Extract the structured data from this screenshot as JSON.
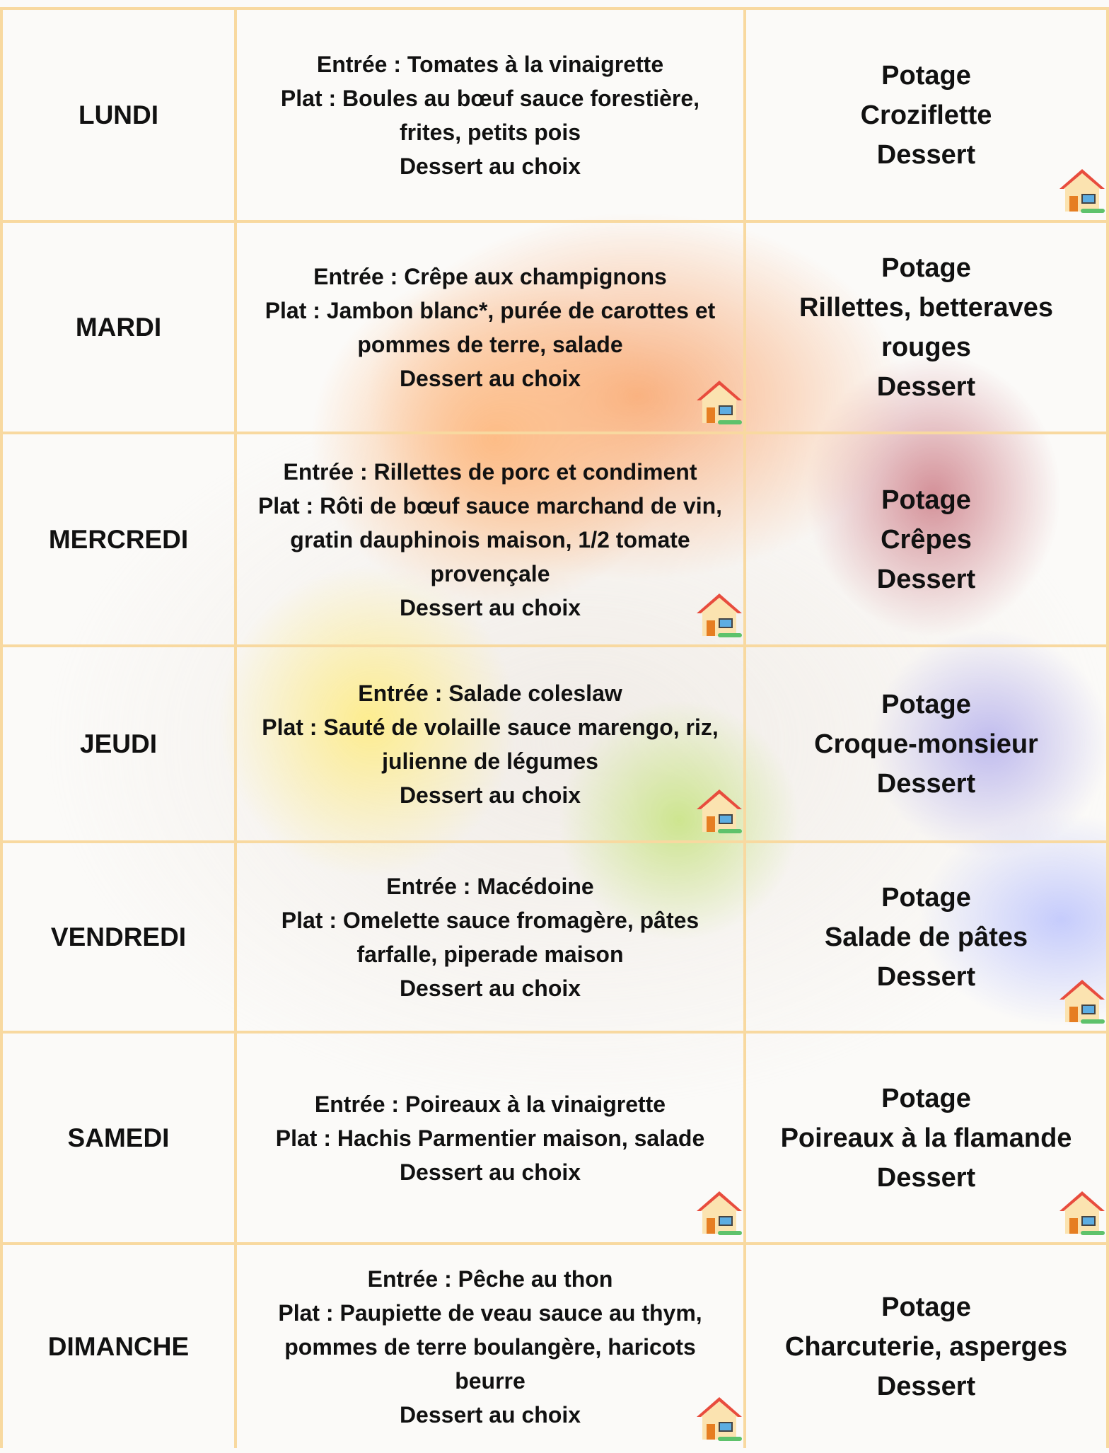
{
  "table": {
    "rows": [
      {
        "day": "LUNDI",
        "midi": [
          "Entrée : Tomates à la vinaigrette",
          "Plat : Boules au bœuf sauce forestière, frites, petits pois",
          "Dessert au choix"
        ],
        "soir": [
          "Potage",
          "Croziflette",
          "Dessert"
        ]
      },
      {
        "day": "MARDI",
        "midi": [
          "Entrée : Crêpe aux champignons",
          "Plat : Jambon blanc*, purée de carottes et pommes de terre, salade",
          "Dessert au choix"
        ],
        "soir": [
          "Potage",
          "Rillettes, betteraves rouges",
          "Dessert"
        ]
      },
      {
        "day": "MERCREDI",
        "midi": [
          "Entrée : Rillettes de porc et condiment",
          "Plat : Rôti de bœuf sauce marchand de vin, gratin dauphinois maison, 1/2 tomate provençale",
          "Dessert au choix"
        ],
        "soir": [
          "Potage",
          "Crêpes",
          "Dessert"
        ]
      },
      {
        "day": "JEUDI",
        "midi": [
          "Entrée : Salade coleslaw",
          "Plat : Sauté de volaille sauce marengo, riz, julienne de légumes",
          "Dessert au choix"
        ],
        "soir": [
          "Potage",
          "Croque-monsieur",
          "Dessert"
        ]
      },
      {
        "day": "VENDREDI",
        "midi": [
          "Entrée : Macédoine",
          "Plat : Omelette sauce fromagère, pâtes farfalle, piperade maison",
          "Dessert au choix"
        ],
        "soir": [
          "Potage",
          "Salade de pâtes",
          "Dessert"
        ]
      },
      {
        "day": "SAMEDI",
        "midi": [
          "Entrée : Poireaux à la vinaigrette",
          "Plat : Hachis Parmentier maison, salade",
          "Dessert au choix"
        ],
        "soir": [
          "Potage",
          "Poireaux à la flamande",
          "Dessert"
        ]
      },
      {
        "day": "DIMANCHE",
        "midi": [
          "Entrée : Pêche au thon",
          "Plat : Paupiette de veau sauce au thym, pommes de terre boulangère, haricots beurre",
          "Dessert au choix"
        ],
        "soir": [
          "Potage",
          "Charcuterie, asperges",
          "Dessert"
        ]
      }
    ]
  }
}
